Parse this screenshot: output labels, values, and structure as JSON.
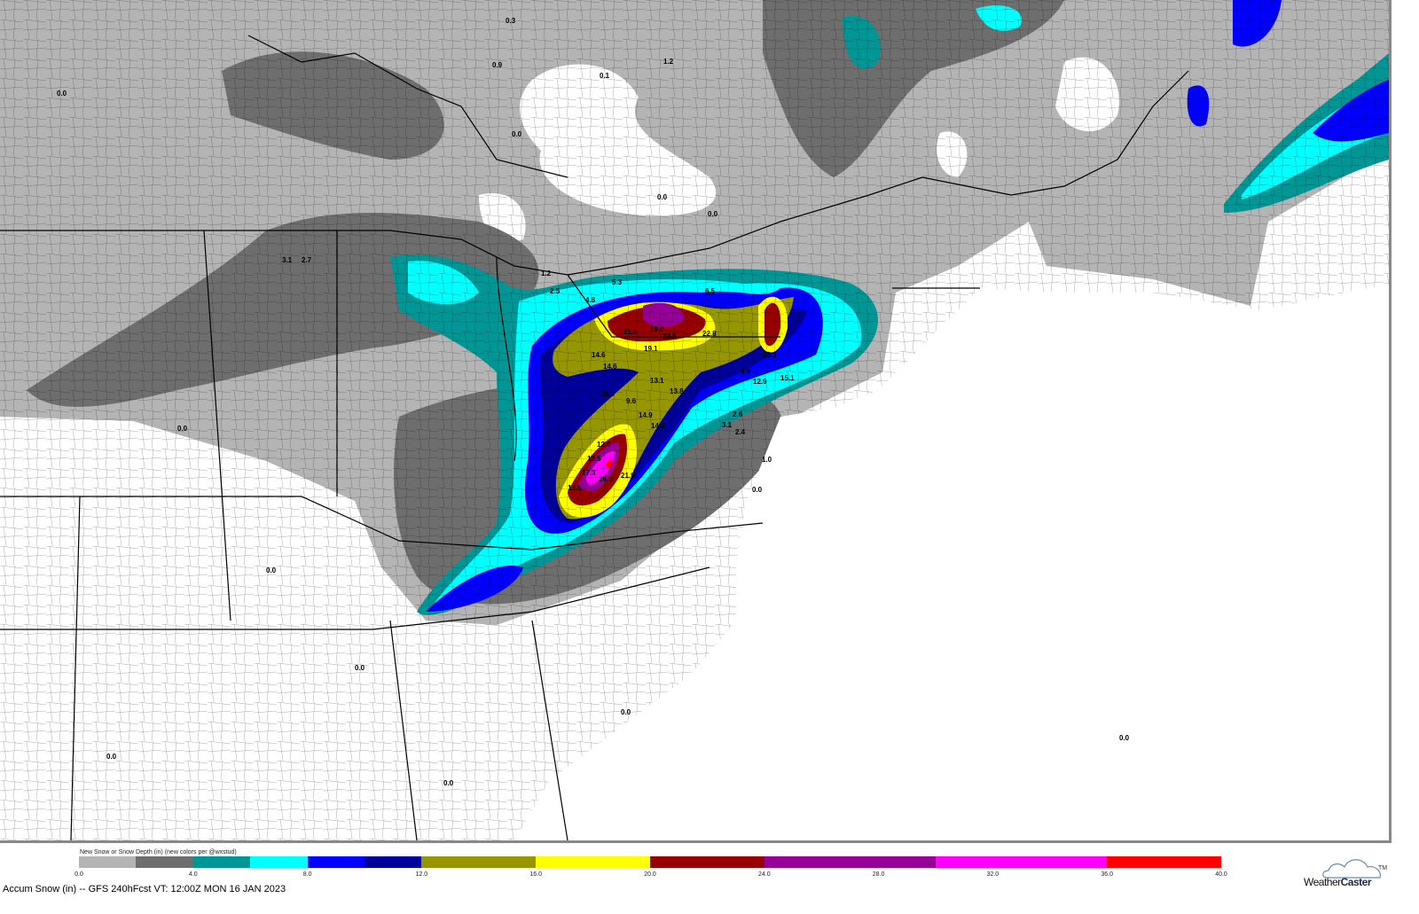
{
  "map": {
    "region": "Eastern United States and Canada",
    "colors": {
      "land": "#ffffff",
      "border": "#000000"
    },
    "point_values": [
      "19.0",
      "22.5",
      "21.6",
      "22.8",
      "19.1",
      "14.6",
      "14.6",
      "13.1",
      "13.8",
      "10.5",
      "9.6",
      "14.9",
      "14.8",
      "12.9",
      "13.5",
      "17.3",
      "26.3",
      "21.9",
      "13.5",
      "15.3",
      "15.1",
      "12.9",
      "8.9",
      "2.6",
      "3.1",
      "2.4",
      "1.0",
      "0.0",
      "0.9",
      "1.2",
      "0.0",
      "0.1",
      "0.0",
      "0.0",
      "0.0",
      "0.3",
      "6.5",
      "4.8",
      "2.5",
      "1.2",
      "5.3",
      "2.7",
      "3.1",
      "0.0",
      "0.0",
      "0.0",
      "0.0",
      "0.0",
      "0.0",
      "0.0"
    ]
  },
  "legend": {
    "title": "New Snow or Snow Depth (in) (new colors per @wxstud)",
    "bins": [
      {
        "from": 0.0,
        "to": 2.0,
        "color": "#b4b4b4"
      },
      {
        "from": 2.0,
        "to": 4.0,
        "color": "#6e6e6e"
      },
      {
        "from": 4.0,
        "to": 6.0,
        "color": "#009696"
      },
      {
        "from": 6.0,
        "to": 8.0,
        "color": "#00ffff"
      },
      {
        "from": 8.0,
        "to": 10.0,
        "color": "#0000ff"
      },
      {
        "from": 10.0,
        "to": 12.0,
        "color": "#00009a"
      },
      {
        "from": 12.0,
        "to": 16.0,
        "color": "#969600"
      },
      {
        "from": 16.0,
        "to": 20.0,
        "color": "#ffff00"
      },
      {
        "from": 20.0,
        "to": 24.0,
        "color": "#960000"
      },
      {
        "from": 24.0,
        "to": 30.0,
        "color": "#960096"
      },
      {
        "from": 30.0,
        "to": 36.0,
        "color": "#ff00ff"
      },
      {
        "from": 36.0,
        "to": 40.0,
        "color": "#ff0000"
      }
    ],
    "ticks": [
      "0.0",
      "4.0",
      "8.0",
      "12.0",
      "16.0",
      "20.0",
      "24.0",
      "28.0",
      "32.0",
      "36.0",
      "40.0"
    ]
  },
  "caption": "Accum Snow (in) -- GFS 240hFcst VT: 12:00Z MON 16 JAN 2023",
  "logo": {
    "text_light": "Weather",
    "text_bold": "Caster",
    "tm": "TM"
  }
}
